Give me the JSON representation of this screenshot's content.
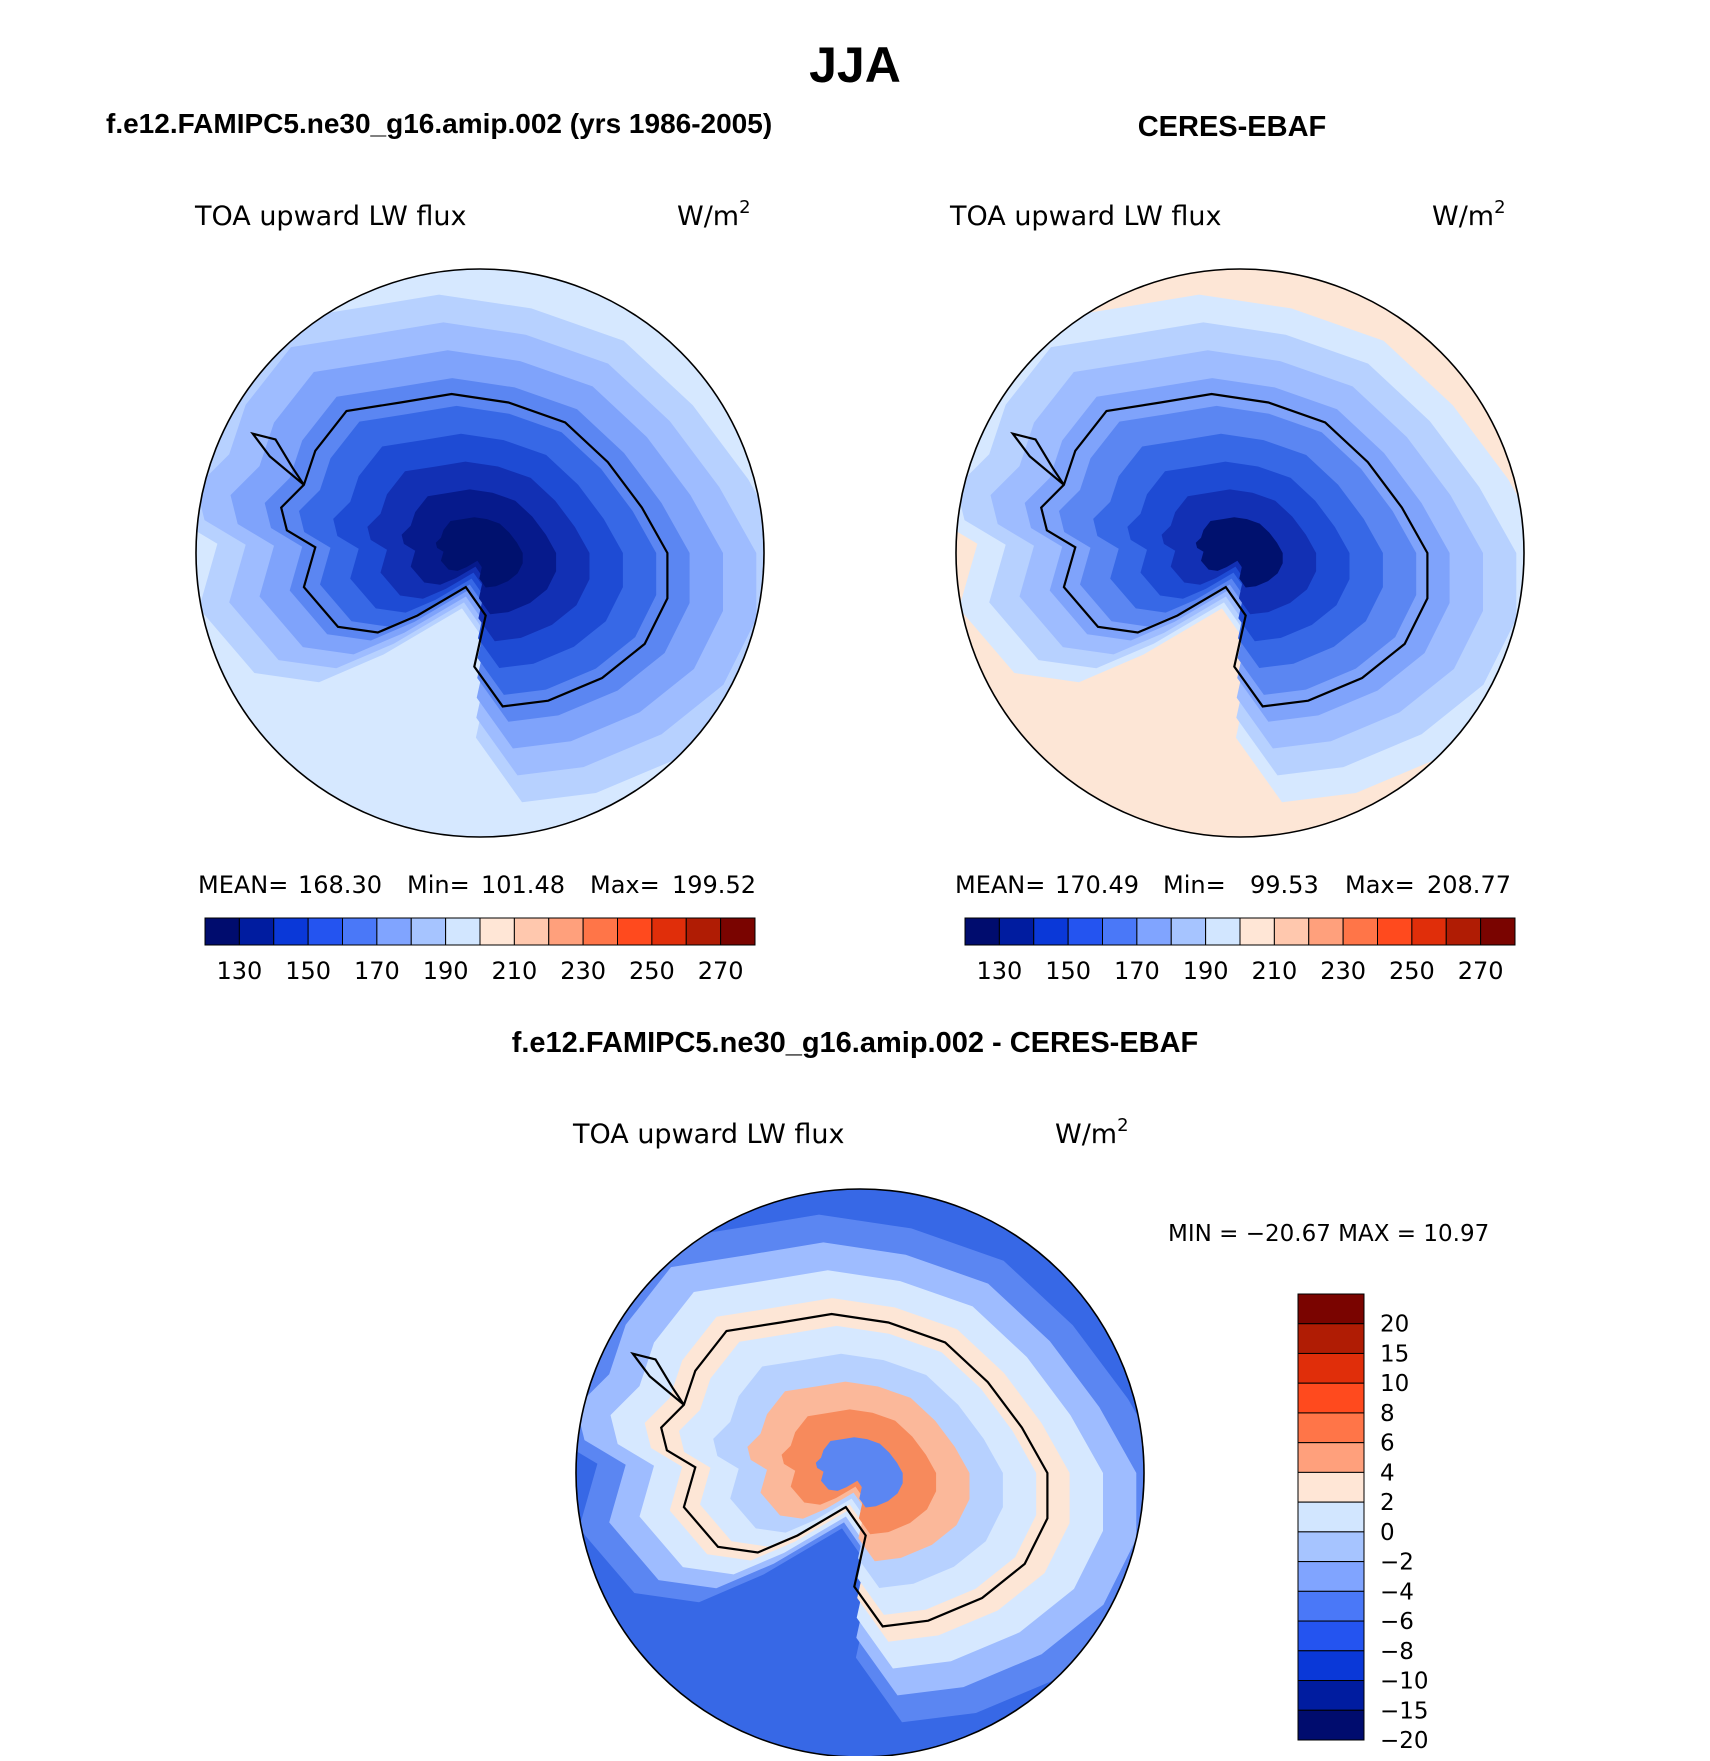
{
  "figure": {
    "title": "JJA",
    "bottom_title": "f.e12.FAMIPC5.ne30_g16.amip.002 - CERES-EBAF"
  },
  "panels": [
    {
      "title": "f.e12.FAMIPC5.ne30_g16.amip.002 (yrs 1986-2005)",
      "variable": "TOA upward LW flux",
      "units": "W/m",
      "units_exp": "2",
      "stats": {
        "mean_label": "MEAN=",
        "mean": "168.30",
        "min_label": "Min=",
        "min": "101.48",
        "max_label": "Max=",
        "max": "199.52"
      },
      "fill_rings": [
        "#d6e8ff",
        "#b7d1ff",
        "#9ebcff",
        "#7fa3fb",
        "#5b86f2",
        "#3768e6",
        "#1e4bd4",
        "#1230b4",
        "#061a8c",
        "#00116e"
      ]
    },
    {
      "title": "CERES-EBAF",
      "variable": "TOA upward LW flux",
      "units": "W/m",
      "units_exp": "2",
      "stats": {
        "mean_label": "MEAN=",
        "mean": "170.49",
        "min_label": "Min=",
        "min": "99.53",
        "max_label": "Max=",
        "max": "208.77"
      },
      "fill_rings": [
        "#fde6d6",
        "#d6e8ff",
        "#b7d1ff",
        "#9ebcff",
        "#7fa3fb",
        "#5b86f2",
        "#3768e6",
        "#1e4bd4",
        "#1230b4",
        "#00116e"
      ]
    },
    {
      "variable": "TOA upward LW flux",
      "units": "W/m",
      "units_exp": "2",
      "stats_text": "MIN = −20.67 MAX =   10.97",
      "fill_rings": [
        "#3768e6",
        "#5b86f2",
        "#9ebcff",
        "#d6e8ff",
        "#fde6d6",
        "#d6e8ff",
        "#b7d1ff",
        "#fbb89a",
        "#f78a5c",
        "#5b86f2"
      ]
    }
  ],
  "colorbar_abs": {
    "colors": [
      "#000c6e",
      "#001ca0",
      "#0a38d8",
      "#2454f0",
      "#4a78f8",
      "#80a4ff",
      "#a6c4ff",
      "#d2e6ff",
      "#ffe6d6",
      "#ffc8ae",
      "#ffa07c",
      "#ff7548",
      "#ff4a1e",
      "#e02e0a",
      "#b01c04",
      "#7a0400"
    ],
    "labels": [
      "130",
      "150",
      "170",
      "190",
      "210",
      "230",
      "250",
      "270"
    ]
  },
  "colorbar_diff": {
    "colors": [
      "#7a0400",
      "#b01c04",
      "#e02e0a",
      "#ff4a1e",
      "#ff7548",
      "#ffa07c",
      "#ffe6d6",
      "#d2e6ff",
      "#a6c4ff",
      "#80a4ff",
      "#4a78f8",
      "#2454f0",
      "#0a38d8",
      "#001ca0",
      "#000c6e"
    ],
    "labels": [
      "20",
      "15",
      "10",
      "8",
      "6",
      "4",
      "2",
      "0",
      "−2",
      "−4",
      "−6",
      "−8",
      "−10",
      "−15",
      "−20"
    ]
  }
}
